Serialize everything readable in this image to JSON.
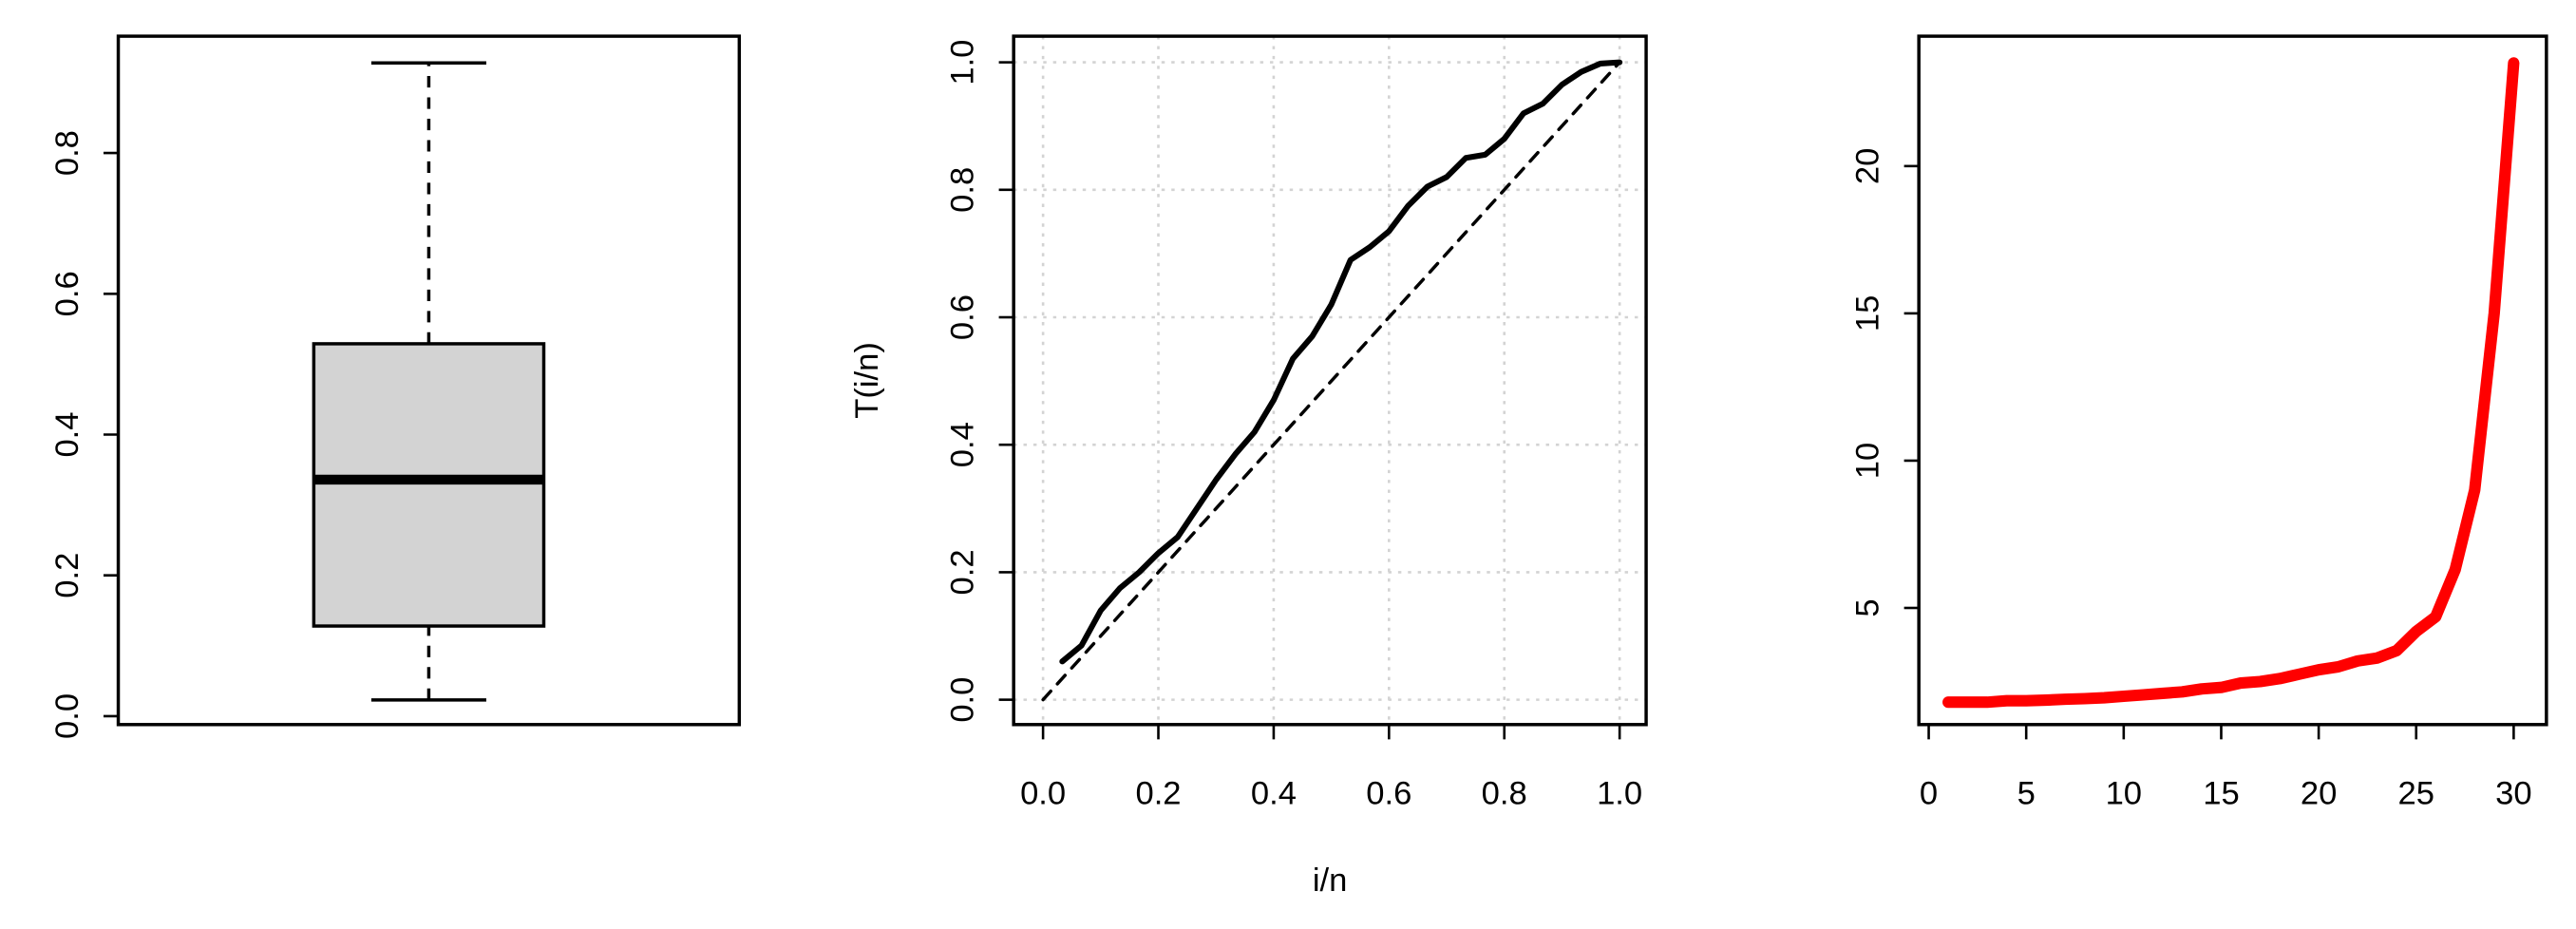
{
  "chart_data": [
    {
      "type": "boxplot",
      "color": "#d3d3d3",
      "stats": {
        "min": 0.023,
        "q1": 0.128,
        "median": 0.336,
        "q3": 0.529,
        "max": 0.928
      },
      "ylim": [
        -0.012,
        0.966
      ],
      "yticks": [
        {
          "value": 0,
          "label": "0.0"
        },
        0.2,
        0.4,
        0.6,
        0.8
      ]
    },
    {
      "type": "line",
      "xlabel": "i/n",
      "ylabel": "T(i/n)",
      "grid": true,
      "xlim": [
        -0.051,
        1.046
      ],
      "ylim": [
        -0.039,
        1.041
      ],
      "xticks": [
        {
          "value": 0,
          "label": "0.0"
        },
        0.2,
        0.4,
        0.6,
        0.8,
        {
          "value": 1,
          "label": "1.0"
        }
      ],
      "yticks": [
        {
          "value": 0,
          "label": "0.0"
        },
        0.2,
        0.4,
        0.6,
        0.8,
        {
          "value": 1,
          "label": "1.0"
        }
      ],
      "series": [
        {
          "color": "#000000",
          "linestyle": "solid",
          "x": [
            0.0333,
            0.0667,
            0.1,
            0.1333,
            0.1667,
            0.2,
            0.2333,
            0.2667,
            0.3,
            0.3333,
            0.3667,
            0.4,
            0.4333,
            0.4667,
            0.5,
            0.5333,
            0.5667,
            0.6,
            0.6333,
            0.6667,
            0.7,
            0.7333,
            0.7667,
            0.8,
            0.8333,
            0.8667,
            0.9,
            0.9333,
            0.9667,
            1.0
          ],
          "values": [
            0.06,
            0.085,
            0.14,
            0.175,
            0.2,
            0.23,
            0.255,
            0.3,
            0.345,
            0.385,
            0.42,
            0.47,
            0.535,
            0.57,
            0.62,
            0.69,
            0.71,
            0.735,
            0.775,
            0.805,
            0.82,
            0.85,
            0.855,
            0.88,
            0.92,
            0.935,
            0.965,
            0.985,
            0.998,
            1.0
          ]
        },
        {
          "color": "#000000",
          "linestyle": "dashed",
          "x": [
            0,
            1
          ],
          "values": [
            0,
            1
          ]
        }
      ]
    },
    {
      "type": "line",
      "xlim": [
        -0.506,
        31.68
      ],
      "ylim": [
        1.04,
        24.41
      ],
      "xticks": [
        0,
        5,
        10,
        15,
        20,
        25,
        30
      ],
      "yticks": [
        5,
        10,
        15,
        20
      ],
      "series": [
        {
          "color": "#ff0000",
          "linestyle": "solid",
          "x": [
            1,
            2,
            3,
            4,
            5,
            6,
            7,
            8,
            9,
            10,
            11,
            12,
            13,
            14,
            15,
            16,
            17,
            18,
            19,
            20,
            21,
            22,
            23,
            24,
            25,
            26,
            27,
            28,
            29,
            30
          ],
          "values": [
            1.8,
            1.8,
            1.8,
            1.85,
            1.85,
            1.87,
            1.9,
            1.92,
            1.95,
            2.0,
            2.05,
            2.1,
            2.15,
            2.25,
            2.3,
            2.45,
            2.5,
            2.6,
            2.75,
            2.9,
            3.0,
            3.2,
            3.3,
            3.55,
            4.2,
            4.7,
            6.3,
            9.0,
            15.0,
            23.5
          ]
        }
      ]
    }
  ]
}
